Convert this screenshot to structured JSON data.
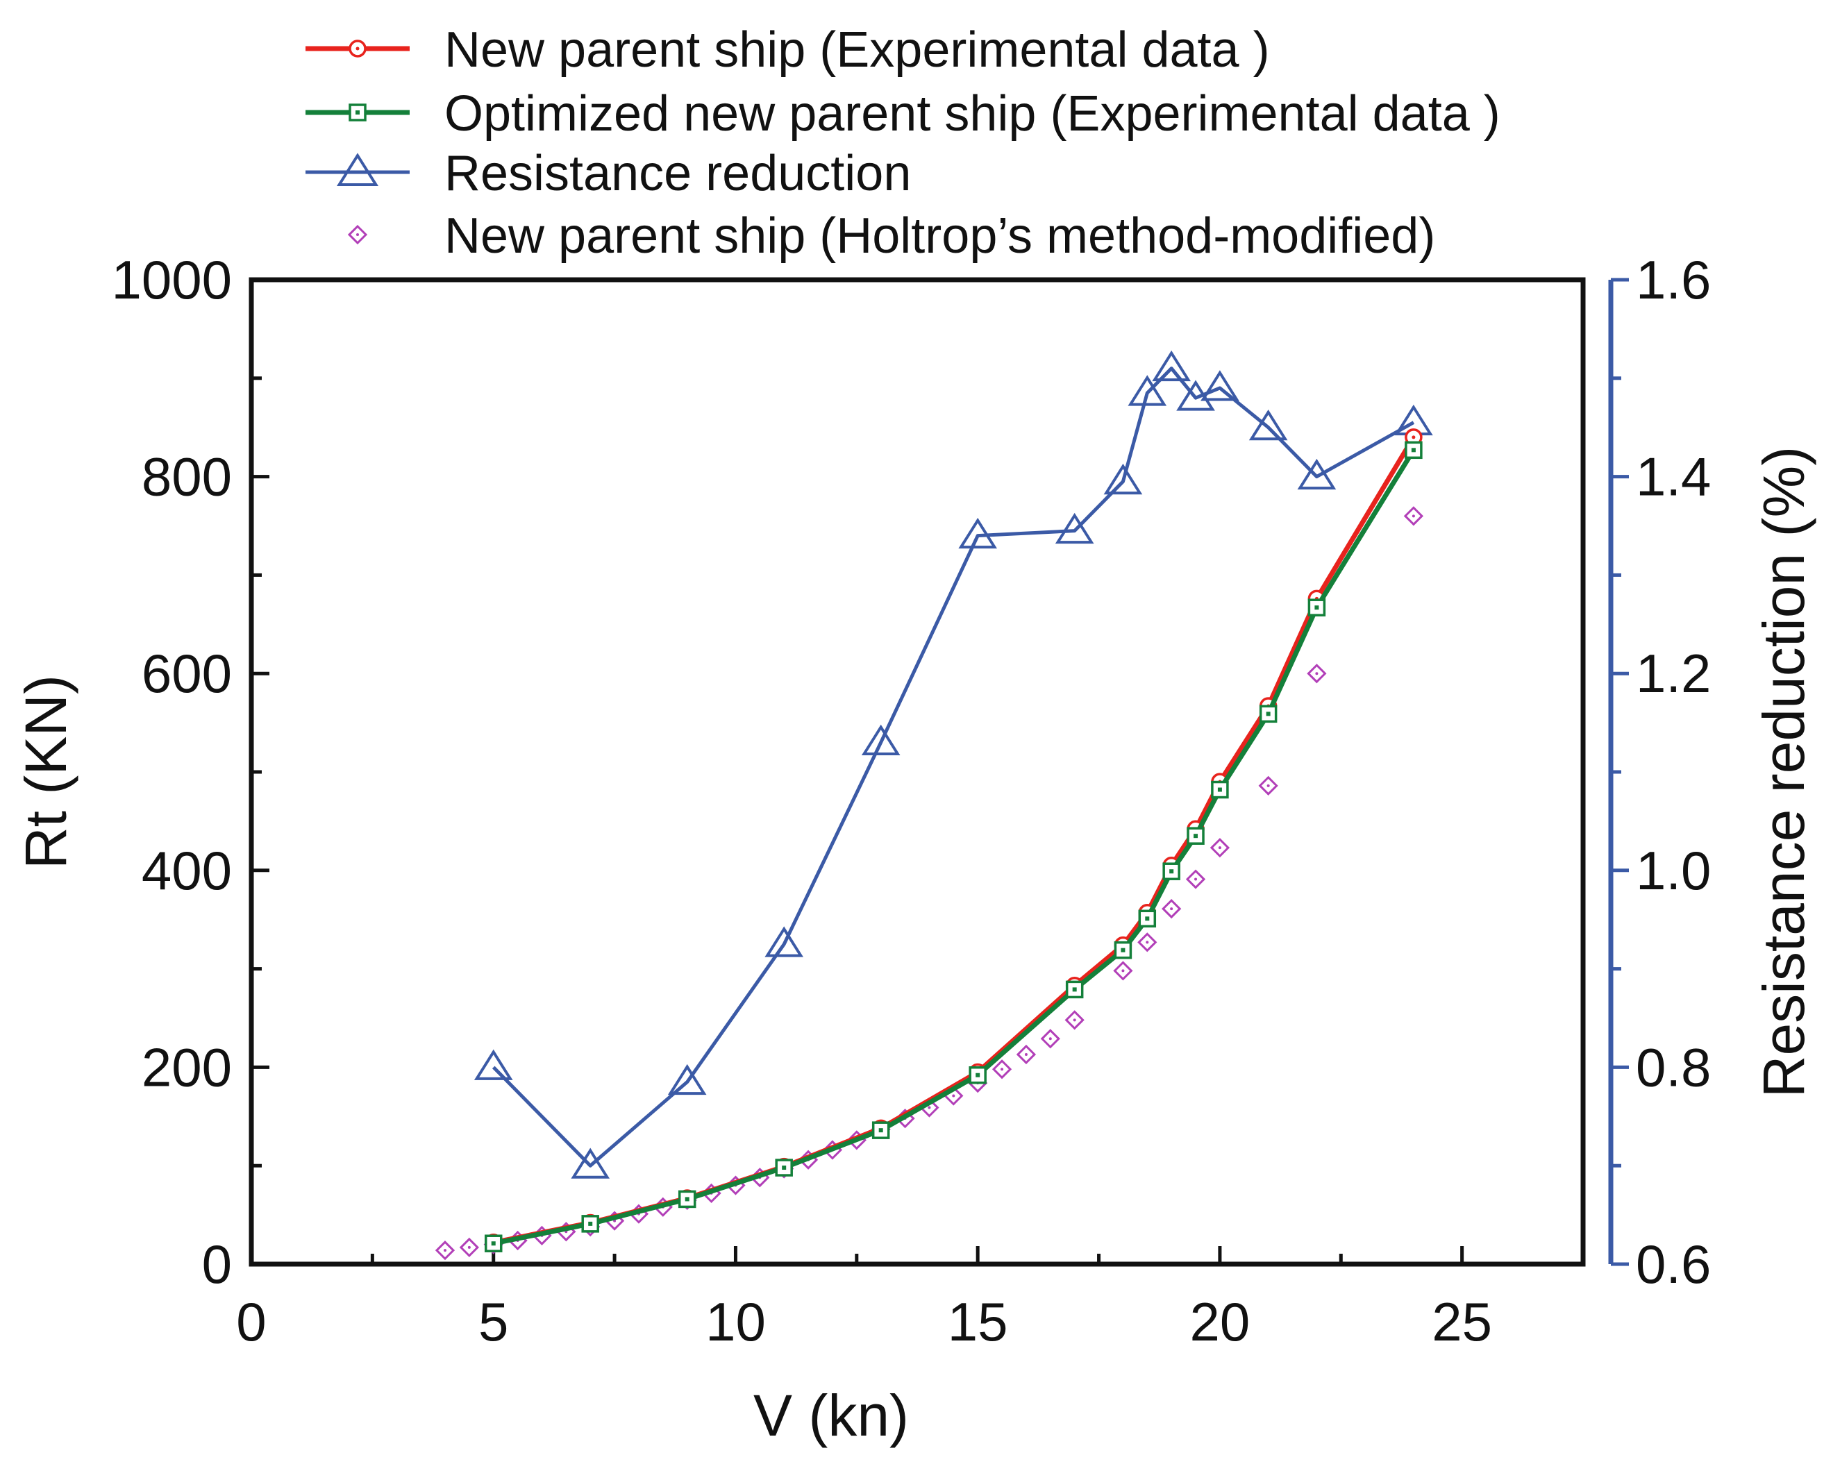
{
  "chart_data": {
    "type": "line",
    "title": "",
    "xlabel": "V (kn)",
    "ylabel": "Rt (KN)",
    "y2label": "Resistance reduction (%)",
    "xlim": [
      0,
      27.5
    ],
    "ylim": [
      0,
      1000
    ],
    "y2lim": [
      0.6,
      1.6
    ],
    "x_ticks": [
      0,
      5,
      10,
      15,
      20,
      25
    ],
    "y_ticks": [
      0,
      200,
      400,
      600,
      800,
      1000
    ],
    "y2_ticks": [
      "0.6",
      "0.8",
      "1.0",
      "1.2",
      "1.4",
      "1.6"
    ],
    "grid": false,
    "legend_position": "top",
    "colors": {
      "axis": "#111111",
      "right_axis": "#3b5aa6",
      "new_parent": "#e8231d",
      "optimized": "#14803a",
      "reduction": "#3b5aa6",
      "holtrop": "#b23fb8"
    },
    "series": [
      {
        "name": "New parent ship (Experimental data )",
        "axis": "left",
        "style": "line-circle",
        "x": [
          5,
          7,
          9,
          11,
          13,
          15,
          17,
          18,
          18.5,
          19,
          19.5,
          20,
          21,
          22,
          24
        ],
        "y": [
          22,
          42,
          67,
          99,
          138,
          195,
          283,
          324,
          357,
          405,
          442,
          490,
          567,
          676,
          840
        ]
      },
      {
        "name": "Optimized new parent ship (Experimental data )",
        "axis": "left",
        "style": "line-square",
        "x": [
          5,
          7,
          9,
          11,
          13,
          15,
          17,
          18,
          18.5,
          19,
          19.5,
          20,
          21,
          22,
          24
        ],
        "y": [
          21,
          41,
          66,
          98,
          136,
          192,
          279,
          319,
          351,
          399,
          435,
          482,
          559,
          667,
          827
        ]
      },
      {
        "name": "Resistance reduction",
        "axis": "right",
        "style": "line-triangle",
        "x": [
          5,
          7,
          9,
          11,
          13,
          15,
          17,
          18,
          18.5,
          19,
          19.5,
          20,
          21,
          22,
          24
        ],
        "y": [
          0.8,
          0.7,
          0.785,
          0.925,
          1.13,
          1.34,
          1.345,
          1.395,
          1.485,
          1.51,
          1.48,
          1.49,
          1.45,
          1.4,
          1.455
        ]
      },
      {
        "name": "New parent ship (Holtrop’s method-modified)",
        "axis": "left",
        "style": "diamond",
        "x": [
          4,
          4.5,
          5,
          5.5,
          6,
          6.5,
          7,
          7.5,
          8,
          8.5,
          9,
          9.5,
          10,
          10.5,
          11,
          11.5,
          12,
          12.5,
          13,
          13.5,
          14,
          14.5,
          15,
          15.5,
          16,
          16.5,
          17,
          18,
          18.5,
          19,
          19.5,
          20,
          21,
          22,
          24
        ],
        "y": [
          14,
          17,
          20,
          24,
          29,
          33,
          38,
          44,
          51,
          58,
          65,
          72,
          80,
          88,
          97,
          106,
          116,
          126,
          137,
          148,
          159,
          171,
          184,
          198,
          213,
          229,
          248,
          298,
          327,
          361,
          391,
          423,
          486,
          600,
          760
        ]
      }
    ]
  }
}
